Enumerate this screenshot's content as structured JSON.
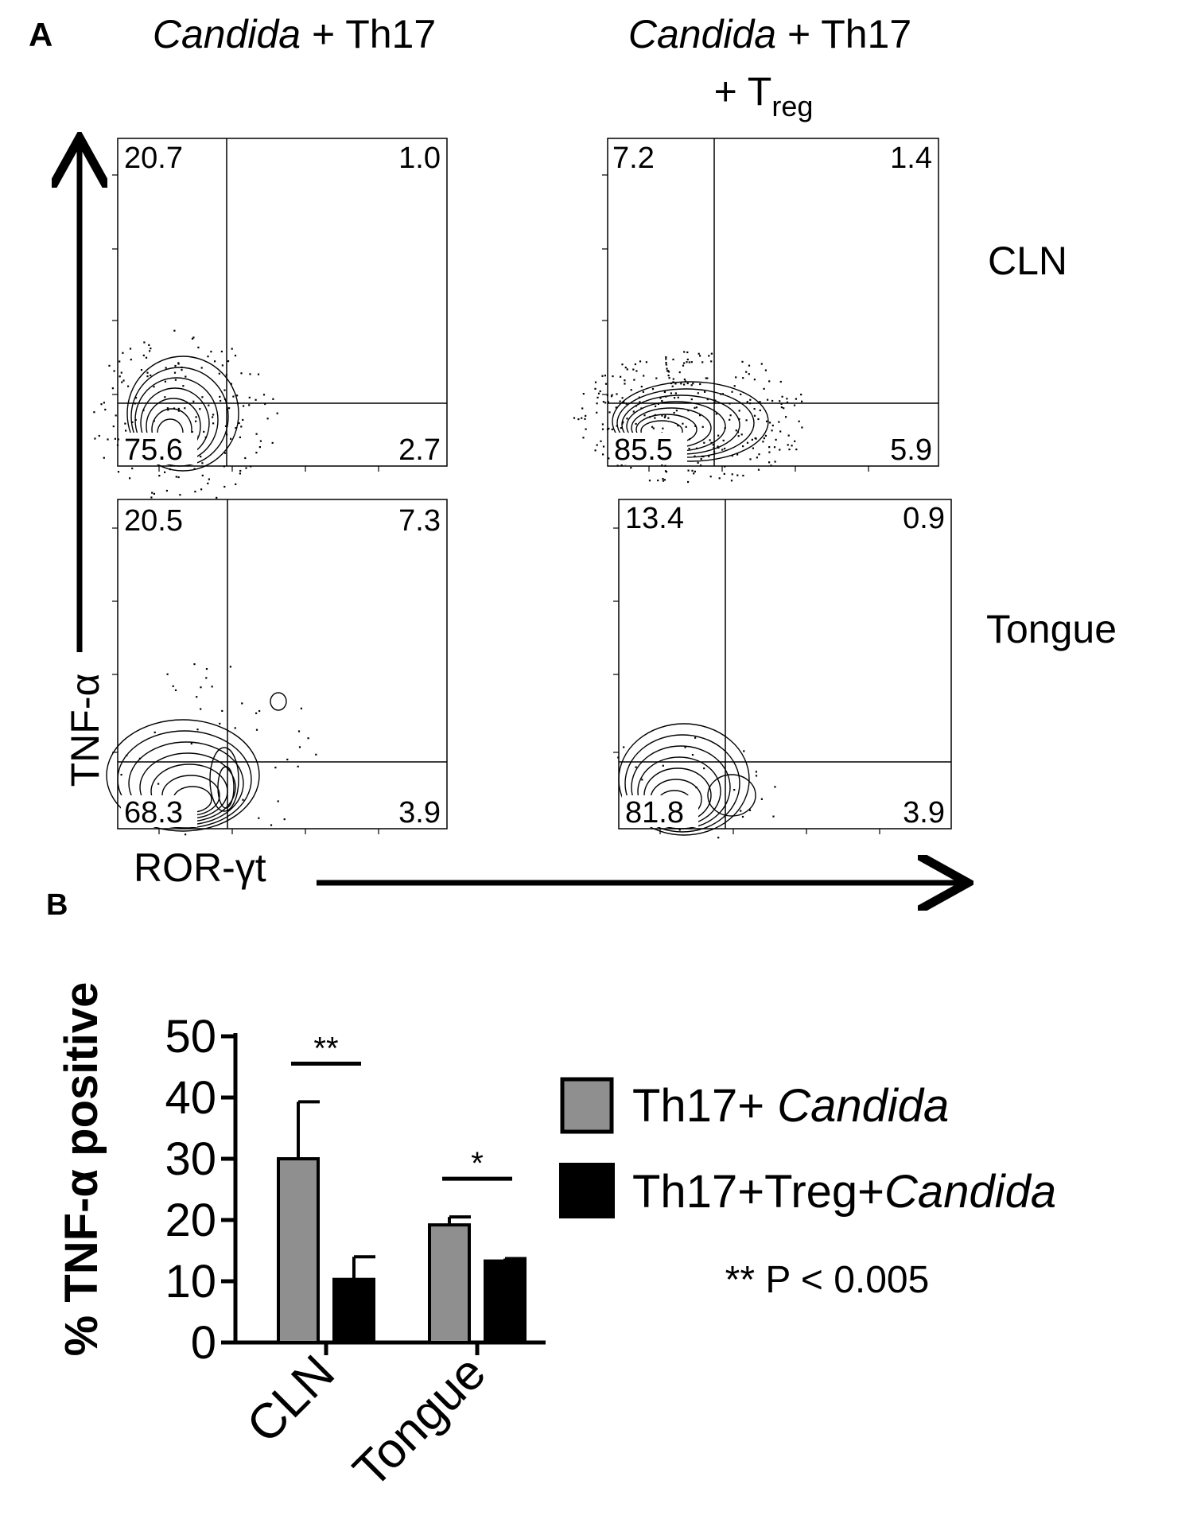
{
  "panel_a": {
    "label": "A",
    "col1_title": {
      "italic": "Candida",
      "rest": " + Th17"
    },
    "col2_title": {
      "italic": "Candida",
      "rest": " + Th17",
      "line2": "+ T",
      "sub": "reg"
    },
    "row_labels": [
      "CLN",
      "Tongue"
    ],
    "y_axis_label": "TNF-α",
    "x_axis_label": "ROR-γt",
    "plots": [
      {
        "row": "CLN",
        "condition": "Candida + Th17",
        "q_top_left": "20.7",
        "q_top_right": "1.0",
        "q_bottom_left": "75.6",
        "q_bottom_right": "2.7"
      },
      {
        "row": "CLN",
        "condition": "Candida + Th17 + Treg",
        "q_top_left": "7.2",
        "q_top_right": "1.4",
        "q_bottom_left": "85.5",
        "q_bottom_right": "5.9"
      },
      {
        "row": "Tongue",
        "condition": "Candida + Th17",
        "q_top_left": "20.5",
        "q_top_right": "7.3",
        "q_bottom_left": "68.3",
        "q_bottom_right": "3.9"
      },
      {
        "row": "Tongue",
        "condition": "Candida + Th17 + Treg",
        "q_top_left": "13.4",
        "q_top_right": "0.9",
        "q_bottom_left": "81.8",
        "q_bottom_right": "3.9"
      }
    ]
  },
  "chart_data": {
    "type": "bar",
    "panel_label": "B",
    "title": "",
    "categories": [
      "CLN",
      "Tongue"
    ],
    "series": [
      {
        "name": "Th17+ Candida",
        "name_plain": "Th17+ ",
        "name_italic": "Candida",
        "color": "#8f8f8f",
        "values": [
          30,
          19.2
        ],
        "errors": [
          9.3,
          1.3
        ]
      },
      {
        "name": "Th17+Treg+Candida",
        "name_plain": "Th17+Treg+",
        "name_italic": "Candida",
        "color": "#000000",
        "values": [
          10.3,
          13.3
        ],
        "errors": [
          3.7,
          0.4
        ]
      }
    ],
    "xlabel": "",
    "ylabel": "% TNF-α positive",
    "ylim": [
      0,
      50
    ],
    "yticks": [
      0,
      10,
      20,
      30,
      40,
      50
    ],
    "significance": [
      {
        "category": "CLN",
        "label": "**"
      },
      {
        "category": "Tongue",
        "label": "*"
      }
    ],
    "note": "** P < 0.005",
    "legend_position": "right"
  }
}
